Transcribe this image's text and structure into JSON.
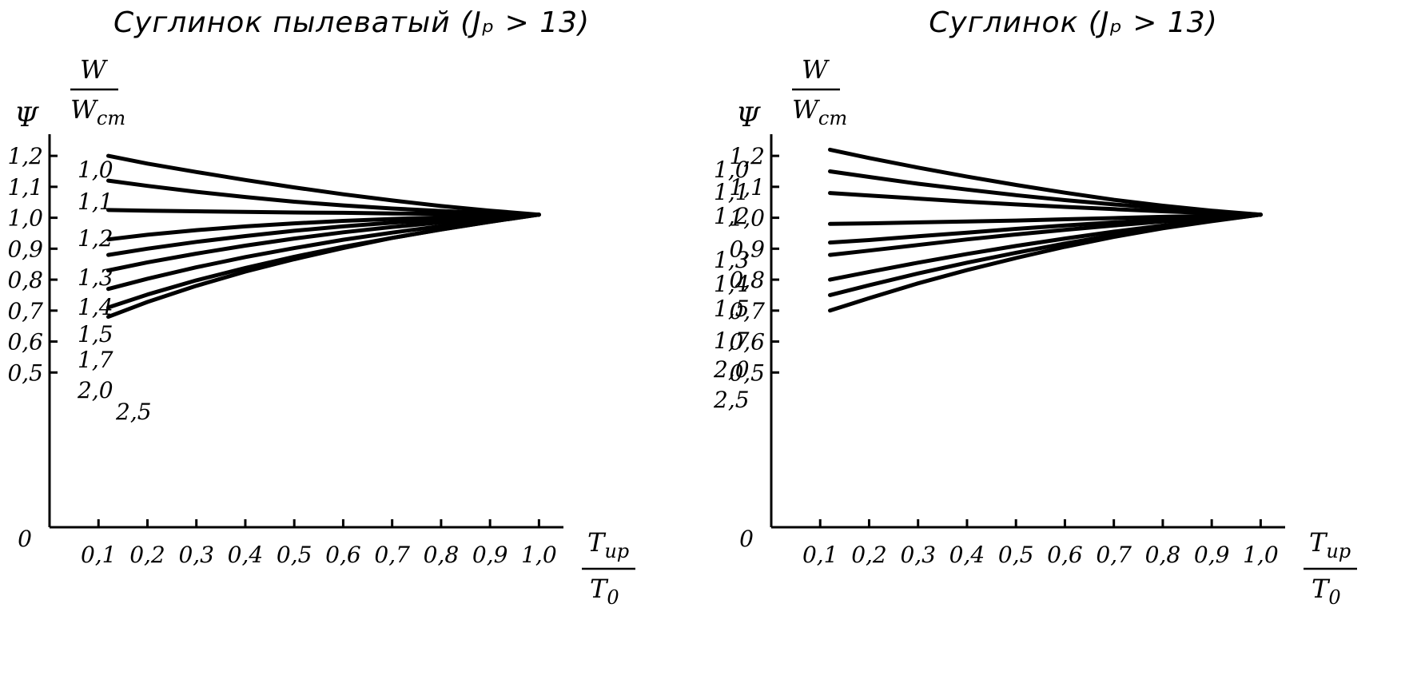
{
  "chart_data": [
    {
      "type": "line",
      "title": "Суглинок пылеватый (Jₚ > 13)",
      "ylabel": "Ψ",
      "series_header": {
        "num": "W",
        "den": "W",
        "den_sub": "ст"
      },
      "xlabel": {
        "num": "T",
        "num_sub": "ир",
        "den": "T",
        "den_sub": "0"
      },
      "origin_label": "0",
      "xlim": [
        0,
        1.05
      ],
      "ylim": [
        0,
        1.27
      ],
      "x_ticks": [
        0.1,
        0.2,
        0.3,
        0.4,
        0.5,
        0.6,
        0.7,
        0.8,
        0.9,
        1.0
      ],
      "x_tick_labels": [
        "0,1",
        "0,2",
        "0,3",
        "0,4",
        "0,5",
        "0,6",
        "0,7",
        "0,8",
        "0,9",
        "1,0"
      ],
      "y_ticks": [
        0.5,
        0.6,
        0.7,
        0.8,
        0.9,
        1.0,
        1.1,
        1.2
      ],
      "y_tick_labels": [
        "0,5",
        "0,6",
        "0,7",
        "0,8",
        "0,9",
        "1,0",
        "1,1",
        "1,2"
      ],
      "x": [
        0.12,
        0.2,
        0.3,
        0.4,
        0.5,
        0.6,
        0.7,
        0.8,
        0.9,
        1.0
      ],
      "series": [
        {
          "name": "1,0",
          "values": [
            1.2,
            1.175,
            1.148,
            1.122,
            1.098,
            1.076,
            1.056,
            1.038,
            1.023,
            1.01
          ]
        },
        {
          "name": "1,1",
          "values": [
            1.12,
            1.103,
            1.084,
            1.067,
            1.052,
            1.04,
            1.03,
            1.022,
            1.015,
            1.01
          ]
        },
        {
          "name": "1,2",
          "values": [
            1.025,
            1.023,
            1.021,
            1.019,
            1.017,
            1.016,
            1.014,
            1.013,
            1.011,
            1.01
          ]
        },
        {
          "name": "1,3",
          "values": [
            0.93,
            0.945,
            0.96,
            0.972,
            0.982,
            0.99,
            0.996,
            1.001,
            1.006,
            1.01
          ]
        },
        {
          "name": "1,4",
          "values": [
            0.88,
            0.9,
            0.922,
            0.941,
            0.958,
            0.972,
            0.984,
            0.994,
            1.002,
            1.01
          ]
        },
        {
          "name": "1,5",
          "values": [
            0.83,
            0.856,
            0.884,
            0.91,
            0.933,
            0.953,
            0.97,
            0.985,
            0.998,
            1.01
          ]
        },
        {
          "name": "1,7",
          "values": [
            0.77,
            0.803,
            0.84,
            0.873,
            0.902,
            0.929,
            0.952,
            0.973,
            0.992,
            1.01
          ]
        },
        {
          "name": "2,0",
          "values": [
            0.71,
            0.752,
            0.798,
            0.838,
            0.874,
            0.906,
            0.935,
            0.962,
            0.987,
            1.01
          ]
        },
        {
          "name": "2,5",
          "values": [
            0.68,
            0.728,
            0.78,
            0.826,
            0.866,
            0.902,
            0.935,
            0.962,
            0.987,
            1.01
          ]
        }
      ]
    },
    {
      "type": "line",
      "title": "Суглинок (Jₚ > 13)",
      "ylabel": "Ψ",
      "series_header": {
        "num": "W",
        "den": "W",
        "den_sub": "ст"
      },
      "xlabel": {
        "num": "T",
        "num_sub": "ир",
        "den": "T",
        "den_sub": "0"
      },
      "origin_label": "0",
      "xlim": [
        0,
        1.05
      ],
      "ylim": [
        0,
        1.27
      ],
      "x_ticks": [
        0.1,
        0.2,
        0.3,
        0.4,
        0.5,
        0.6,
        0.7,
        0.8,
        0.9,
        1.0
      ],
      "x_tick_labels": [
        "0,1",
        "0,2",
        "0,3",
        "0,4",
        "0,5",
        "0,6",
        "0,7",
        "0,8",
        "0,9",
        "1,0"
      ],
      "y_ticks": [
        0.5,
        0.6,
        0.7,
        0.8,
        0.9,
        1.0,
        1.1,
        1.2
      ],
      "y_tick_labels": [
        "0,5",
        "0,6",
        "0,7",
        "0,8",
        "0,9",
        "1,0",
        "1,1",
        "1,2"
      ],
      "x": [
        0.12,
        0.2,
        0.3,
        0.4,
        0.5,
        0.6,
        0.7,
        0.8,
        0.9,
        1.0
      ],
      "series": [
        {
          "name": "1,0",
          "values": [
            1.22,
            1.193,
            1.162,
            1.133,
            1.106,
            1.081,
            1.058,
            1.039,
            1.023,
            1.01
          ]
        },
        {
          "name": "1,1",
          "values": [
            1.15,
            1.132,
            1.11,
            1.091,
            1.073,
            1.057,
            1.043,
            1.031,
            1.02,
            1.01
          ]
        },
        {
          "name": "1,2",
          "values": [
            1.08,
            1.072,
            1.062,
            1.052,
            1.043,
            1.035,
            1.028,
            1.021,
            1.015,
            1.01
          ]
        },
        {
          "name": "1,3",
          "values": [
            0.98,
            0.982,
            0.985,
            0.988,
            0.991,
            0.995,
            0.999,
            1.003,
            1.006,
            1.01
          ]
        },
        {
          "name": "1,4",
          "values": [
            0.92,
            0.928,
            0.94,
            0.952,
            0.964,
            0.975,
            0.985,
            0.994,
            1.002,
            1.01
          ]
        },
        {
          "name": "1,5",
          "values": [
            0.88,
            0.894,
            0.912,
            0.93,
            0.946,
            0.961,
            0.975,
            0.988,
            0.999,
            1.01
          ]
        },
        {
          "name": "1,7",
          "values": [
            0.8,
            0.825,
            0.855,
            0.883,
            0.909,
            0.933,
            0.955,
            0.975,
            0.993,
            1.01
          ]
        },
        {
          "name": "2,0",
          "values": [
            0.75,
            0.782,
            0.82,
            0.855,
            0.887,
            0.917,
            0.944,
            0.968,
            0.99,
            1.01
          ]
        },
        {
          "name": "2,5",
          "values": [
            0.7,
            0.74,
            0.788,
            0.831,
            0.87,
            0.906,
            0.938,
            0.966,
            0.989,
            1.01
          ]
        }
      ]
    }
  ]
}
